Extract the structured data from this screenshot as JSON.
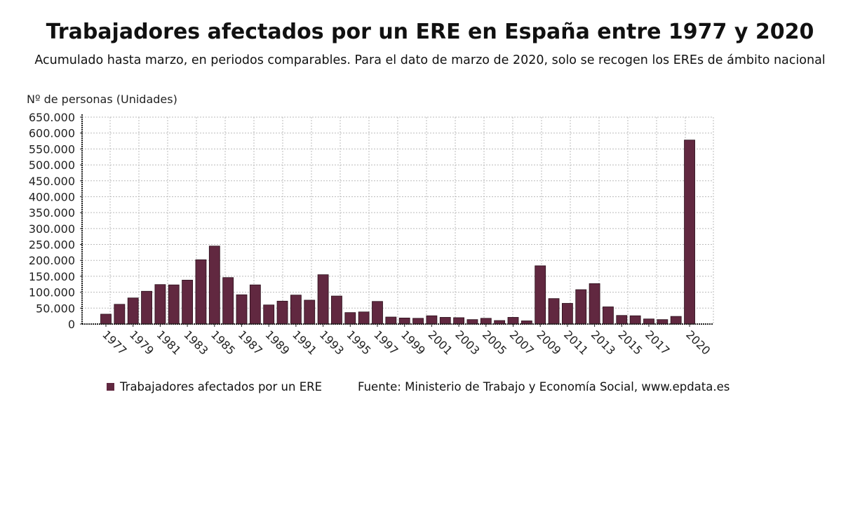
{
  "chart_data": {
    "type": "bar",
    "title": "Trabajadores afectados por un ERE en España entre 1977 y 2020",
    "subtitle": "Acumulado hasta marzo, en periodos comparables. Para el dato de marzo de 2020, solo se recogen los EREs de ámbito nacional",
    "ylabel": "Nº de personas (Unidades)",
    "xlabel": "",
    "ylim": [
      0,
      650000
    ],
    "yticks": [
      "0",
      "50.000",
      "100.000",
      "150.000",
      "200.000",
      "250.000",
      "300.000",
      "350.000",
      "400.000",
      "450.000",
      "500.000",
      "550.000",
      "600.000",
      "650.000"
    ],
    "categories": [
      "1977",
      "1978",
      "1979",
      "1980",
      "1981",
      "1982",
      "1983",
      "1984",
      "1985",
      "1986",
      "1987",
      "1988",
      "1989",
      "1990",
      "1991",
      "1992",
      "1993",
      "1994",
      "1995",
      "1996",
      "1997",
      "1998",
      "1999",
      "2000",
      "2001",
      "2002",
      "2003",
      "2004",
      "2005",
      "2006",
      "2007",
      "2008",
      "2009",
      "2010",
      "2011",
      "2012",
      "2013",
      "2014",
      "2015",
      "2016",
      "2017",
      "2018",
      "2019",
      "2020"
    ],
    "xtick_labels": [
      "1977",
      "1979",
      "1981",
      "1983",
      "1985",
      "1987",
      "1989",
      "1991",
      "1993",
      "1995",
      "1997",
      "1999",
      "2001",
      "2003",
      "2005",
      "2007",
      "2009",
      "2011",
      "2013",
      "2015",
      "2017",
      "2020"
    ],
    "series": [
      {
        "name": "Trabajadores afectados por un ERE",
        "color": "#612840",
        "values": [
          31000,
          62000,
          82000,
          103000,
          124000,
          123000,
          138000,
          202000,
          245000,
          146000,
          92000,
          123000,
          60000,
          72000,
          91000,
          75000,
          155000,
          88000,
          36000,
          38000,
          71000,
          22000,
          19000,
          18000,
          26000,
          21000,
          20000,
          14000,
          18000,
          11000,
          21000,
          10000,
          183000,
          80000,
          65000,
          108000,
          127000,
          54000,
          27000,
          26000,
          16000,
          14000,
          24000,
          578000
        ]
      }
    ],
    "grid": true,
    "legend": "bottom-left",
    "source": "Fuente: Ministerio de Trabajo y Economía Social, www.epdata.es"
  }
}
